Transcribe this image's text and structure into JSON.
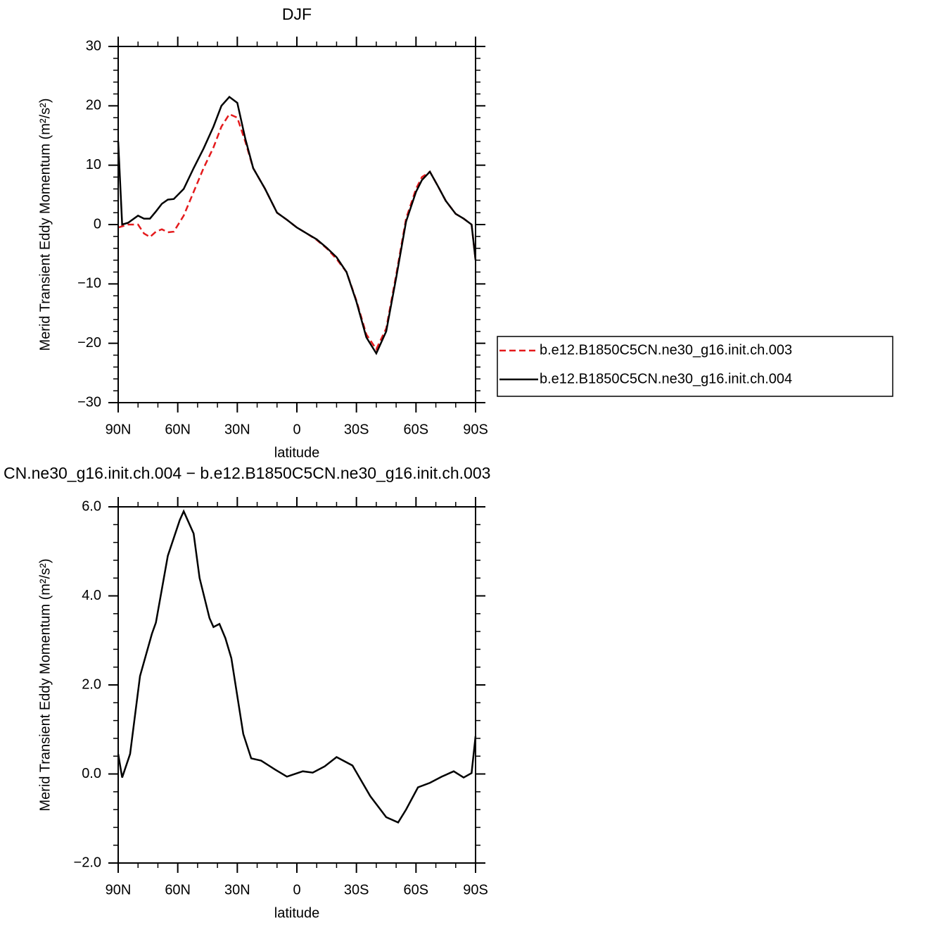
{
  "chart_data": [
    {
      "type": "line",
      "title": "DJF",
      "xlabel": "latitude",
      "ylabel": "Merid Transient Eddy Momentum (m²/s²)",
      "x": [
        90,
        88,
        85,
        80,
        77,
        74,
        71,
        68,
        65,
        62,
        57,
        52,
        47,
        42,
        38,
        34,
        30,
        26,
        22,
        16,
        10,
        5,
        0,
        -5,
        -10,
        -15,
        -20,
        -25,
        -30,
        -35,
        -40,
        -45,
        -50,
        -55,
        -60,
        -63,
        -67,
        -71,
        -75,
        -80,
        -84,
        -88,
        -90
      ],
      "series": [
        {
          "name": "b.e12.B1850C5CN.ne30_g16.init.ch.003",
          "color": "#e41a1c",
          "linestyle": "dashed",
          "values": [
            -0.5,
            -0.3,
            0,
            0,
            -1.5,
            -2.1,
            -1.2,
            -0.8,
            -1.3,
            -1.2,
            1.5,
            5.5,
            9.5,
            13,
            16.5,
            18.6,
            18,
            14,
            9.5,
            6,
            2,
            0.8,
            -0.5,
            -1.5,
            -2.6,
            -4,
            -5.8,
            -8,
            -12.8,
            -18.5,
            -21,
            -17.5,
            -8.5,
            1,
            6,
            8,
            8.9,
            6.5,
            4,
            1.8,
            1,
            0,
            -6
          ]
        },
        {
          "name": "b.e12.B1850C5CN.ne30_g16.init.ch.004",
          "color": "#000000",
          "linestyle": "solid",
          "values": [
            14,
            0,
            0.3,
            1.5,
            1,
            1,
            2.2,
            3.5,
            4.2,
            4.3,
            6,
            9.5,
            12.8,
            16.5,
            20,
            21.5,
            20.5,
            14.5,
            9.5,
            6,
            2,
            0.8,
            -0.5,
            -1.5,
            -2.5,
            -3.9,
            -5.5,
            -8,
            -13,
            -19,
            -21.7,
            -18,
            -9,
            0.5,
            5.5,
            7.5,
            8.9,
            6.5,
            4,
            1.8,
            1,
            0,
            -6
          ]
        }
      ],
      "xlim": [
        90,
        -90
      ],
      "xticks": [
        {
          "value": 90,
          "label": "90N"
        },
        {
          "value": 60,
          "label": "60N"
        },
        {
          "value": 30,
          "label": "30N"
        },
        0,
        {
          "value": -30,
          "label": "30S"
        },
        {
          "value": -60,
          "label": "60S"
        },
        {
          "value": -90,
          "label": "90S"
        }
      ],
      "ylim": [
        -30,
        30
      ],
      "yticks": [
        {
          "value": -30,
          "label": "−30"
        },
        {
          "value": -20,
          "label": "−20"
        },
        {
          "value": -10,
          "label": "−10"
        },
        0,
        10,
        20,
        30
      ],
      "legend": "outside-right"
    },
    {
      "type": "line",
      "title": "CN.ne30_g16.init.ch.004 − b.e12.B1850C5CN.ne30_g16.init.ch.003",
      "xlabel": "latitude",
      "ylabel": "Merid Transient Eddy Momentum (m²/s²)",
      "x": [
        90,
        88,
        84,
        79,
        73,
        71,
        65,
        59,
        57,
        52,
        49,
        44,
        42,
        39,
        36,
        33,
        27,
        23,
        18,
        11,
        5,
        -3,
        -8,
        -14,
        -20,
        -28,
        -37,
        -45,
        -51,
        -55,
        -61,
        -67,
        -73,
        -79,
        -84,
        -88,
        -90
      ],
      "values": [
        0.45,
        -0.08,
        0.45,
        2.2,
        3.15,
        3.4,
        4.9,
        5.7,
        5.9,
        5.4,
        4.4,
        3.5,
        3.3,
        3.37,
        3.05,
        2.6,
        0.9,
        0.35,
        0.3,
        0.1,
        -0.06,
        0.06,
        0.03,
        0.17,
        0.38,
        0.19,
        -0.5,
        -0.97,
        -1.09,
        -0.8,
        -0.3,
        -0.2,
        -0.06,
        0.06,
        -0.08,
        0.02,
        0.85
      ],
      "color": "#000000",
      "xlim": [
        90,
        -90
      ],
      "xticks": [
        {
          "value": 90,
          "label": "90N"
        },
        {
          "value": 60,
          "label": "60N"
        },
        {
          "value": 30,
          "label": "30N"
        },
        0,
        {
          "value": -30,
          "label": "30S"
        },
        {
          "value": -60,
          "label": "60S"
        },
        {
          "value": -90,
          "label": "90S"
        }
      ],
      "ylim": [
        -2,
        6
      ],
      "yticks": [
        {
          "value": -2,
          "label": "−2.0"
        },
        {
          "value": 0,
          "label": "0.0"
        },
        {
          "value": 2,
          "label": "2.0"
        },
        {
          "value": 4,
          "label": "4.0"
        },
        {
          "value": 6,
          "label": "6.0"
        }
      ]
    }
  ]
}
